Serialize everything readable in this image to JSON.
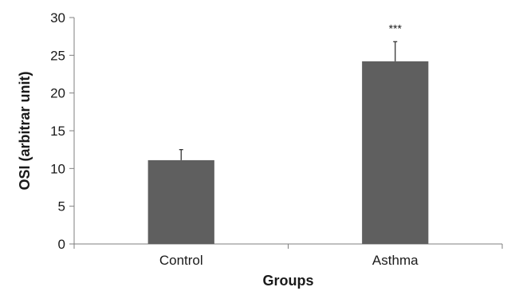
{
  "chart_data": {
    "type": "bar",
    "categories": [
      "Control",
      "Asthma"
    ],
    "values": [
      11.1,
      24.2
    ],
    "errors": [
      1.4,
      2.6
    ],
    "annotations": [
      "",
      "***"
    ],
    "xlabel": "Groups",
    "ylabel": "OSI (arbitrar unit)",
    "ylim": [
      0,
      30
    ],
    "yticks": [
      0,
      5,
      10,
      15,
      20,
      25,
      30
    ],
    "grid": false,
    "colors": {
      "bar": "#5f5f5f",
      "axis": "#7f7f7f",
      "text": "#1a1a1a"
    }
  }
}
